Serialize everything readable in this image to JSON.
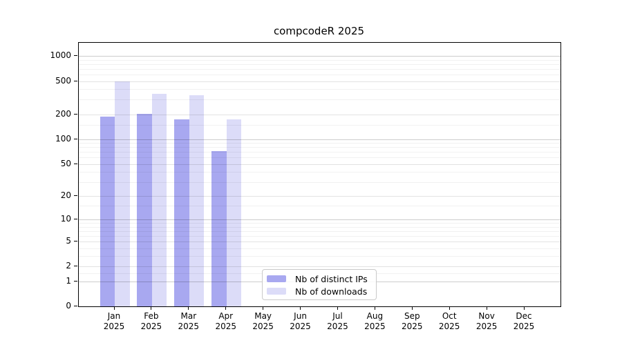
{
  "chart_data": {
    "type": "bar",
    "title": "compcodeR 2025",
    "categories": [
      "Jan",
      "Feb",
      "Mar",
      "Apr",
      "May",
      "Jun",
      "Jul",
      "Aug",
      "Sep",
      "Oct",
      "Nov",
      "Dec"
    ],
    "year_label": "2025",
    "series": [
      {
        "name": "Nb of distinct IPs",
        "color": "#a8a8f0",
        "values": [
          186,
          202,
          172,
          71,
          null,
          null,
          null,
          null,
          null,
          null,
          null,
          null
        ]
      },
      {
        "name": "Nb of downloads",
        "color": "#dcdcf8",
        "values": [
          494,
          350,
          339,
          174,
          null,
          null,
          null,
          null,
          null,
          null,
          null,
          null
        ]
      }
    ],
    "y_axis": {
      "scale": "log1p",
      "ticks": [
        0,
        1,
        2,
        5,
        10,
        20,
        50,
        100,
        200,
        500,
        1000
      ],
      "max": 1000
    },
    "gridlines": {
      "major": [
        1,
        10,
        100,
        1000
      ],
      "mid": [
        2,
        5,
        20,
        50,
        200,
        500
      ],
      "minor": [
        1.5,
        3,
        4,
        6,
        7,
        8,
        9,
        15,
        30,
        40,
        60,
        70,
        80,
        90,
        150,
        300,
        400,
        600,
        700,
        800,
        900
      ]
    },
    "legend": {
      "position": "bottom-center",
      "entries": [
        "Nb of distinct IPs",
        "Nb of downloads"
      ]
    },
    "xlabel": "",
    "ylabel": ""
  }
}
